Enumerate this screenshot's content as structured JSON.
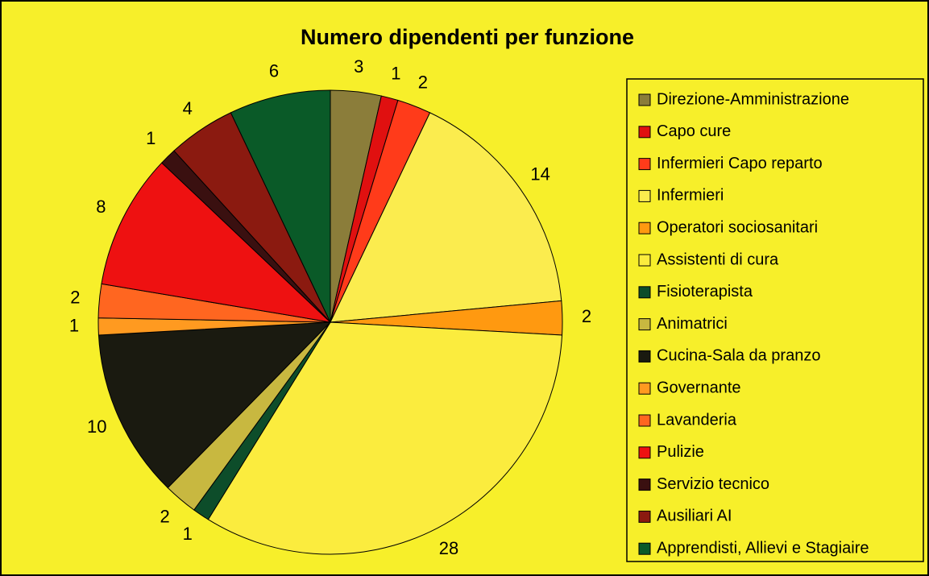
{
  "chart_data": {
    "type": "pie",
    "title": "Numero dipendenti per funzione",
    "categories": [
      "Direzione-Amministrazione",
      "Capo cure",
      "Infermieri Capo reparto",
      "Infermieri",
      "Operatori sociosanitari",
      "Assistenti di cura",
      "Fisioterapista",
      "Animatrici",
      "Cucina-Sala da pranzo",
      "Governante",
      "Lavanderia",
      "Pulizie",
      "Servizio tecnico",
      "Ausiliari AI",
      "Apprendisti, Allievi e Stagiaire"
    ],
    "values": [
      3,
      1,
      2,
      14,
      2,
      28,
      1,
      2,
      10,
      1,
      2,
      8,
      1,
      4,
      6
    ],
    "colors": [
      "#8b7d3a",
      "#e01010",
      "#ff3b1a",
      "#fbec4e",
      "#ff9910",
      "#fbec3e",
      "#0d4d2a",
      "#c8b840",
      "#1a1a10",
      "#ff9a20",
      "#ff6620",
      "#ee1111",
      "#3a1010",
      "#8b1a10",
      "#0a5a28"
    ],
    "legend": "right"
  }
}
